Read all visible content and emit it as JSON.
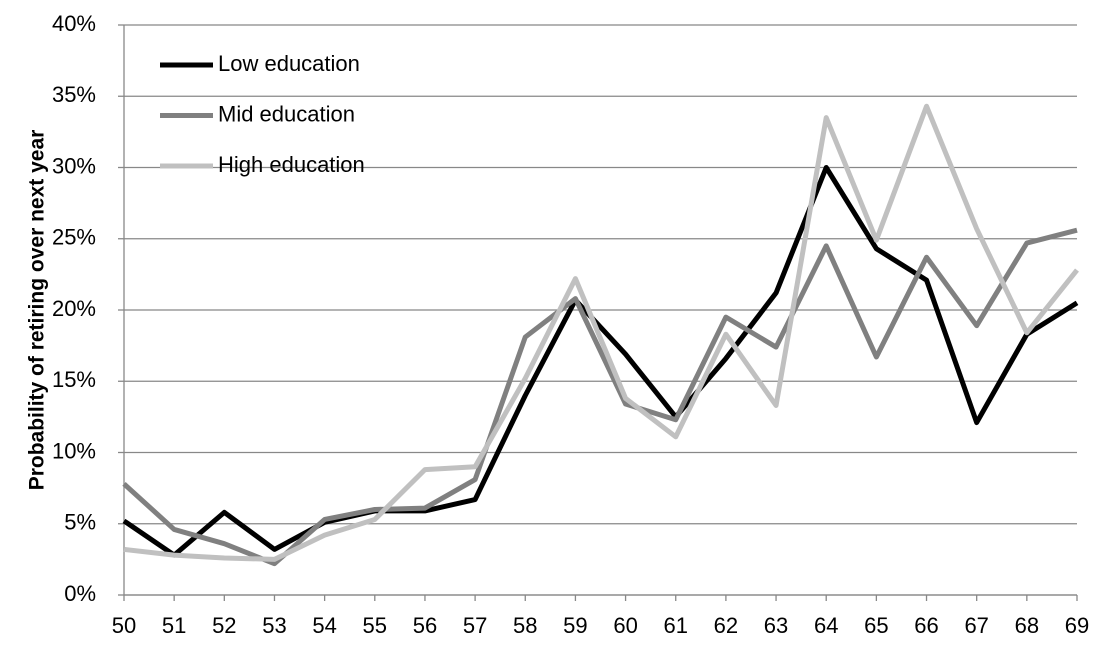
{
  "chart_data": {
    "type": "line",
    "y_label": "Probability of retiring over next year",
    "x": [
      50,
      51,
      52,
      53,
      54,
      55,
      56,
      57,
      58,
      59,
      60,
      61,
      62,
      63,
      64,
      65,
      66,
      67,
      68,
      69
    ],
    "xlim": [
      50,
      69
    ],
    "xticks": [
      50,
      51,
      52,
      53,
      54,
      55,
      56,
      57,
      58,
      59,
      60,
      61,
      62,
      63,
      64,
      65,
      66,
      67,
      68,
      69
    ],
    "ylim": [
      0,
      40
    ],
    "yticks": [
      {
        "value": 0,
        "label": "0%"
      },
      {
        "value": 5,
        "label": "5%"
      },
      {
        "value": 10,
        "label": "10%"
      },
      {
        "value": 15,
        "label": "15%"
      },
      {
        "value": 20,
        "label": "20%"
      },
      {
        "value": 25,
        "label": "25%"
      },
      {
        "value": 30,
        "label": "30%"
      },
      {
        "value": 35,
        "label": "35%"
      },
      {
        "value": 40,
        "label": "40%"
      }
    ],
    "grid": true,
    "legend": "top-left",
    "series": [
      {
        "name": "Low education",
        "color": "#000000",
        "values": [
          5.2,
          2.8,
          5.8,
          3.2,
          5.1,
          5.9,
          5.9,
          6.7,
          14.0,
          20.7,
          16.9,
          12.5,
          16.6,
          21.2,
          30.0,
          24.3,
          22.1,
          12.1,
          18.3,
          20.5
        ]
      },
      {
        "name": "Mid education",
        "color": "#808080",
        "values": [
          7.8,
          4.6,
          3.6,
          2.2,
          5.3,
          6.0,
          6.1,
          8.1,
          18.1,
          20.8,
          13.4,
          12.3,
          19.5,
          17.4,
          24.5,
          16.7,
          23.7,
          18.9,
          24.7,
          25.6
        ]
      },
      {
        "name": "High education",
        "color": "#c0c0c0",
        "values": [
          3.2,
          2.8,
          2.6,
          2.5,
          4.2,
          5.3,
          8.8,
          9.0,
          15.2,
          22.2,
          13.8,
          11.1,
          18.3,
          13.3,
          33.5,
          24.9,
          34.3,
          25.7,
          18.4,
          22.8
        ]
      }
    ]
  }
}
